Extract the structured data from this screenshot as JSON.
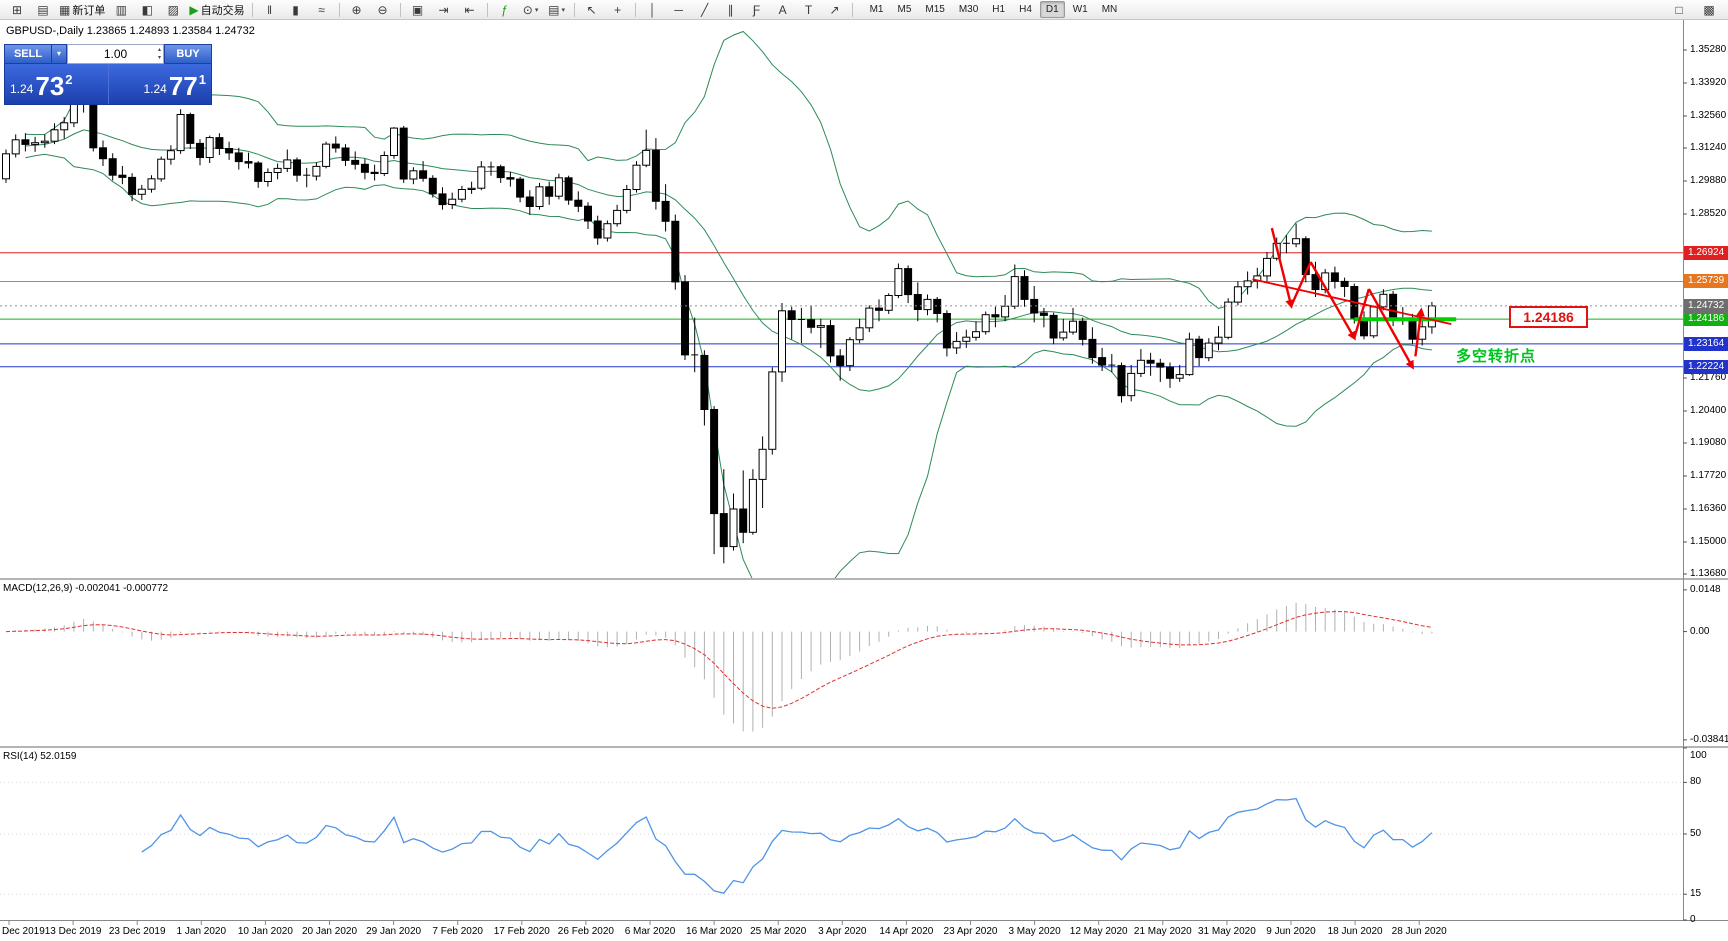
{
  "icons": {
    "caret_down": "▾",
    "spinner_up": "▴",
    "spinner_down": "▾"
  },
  "toolbar": {
    "buttons": [
      {
        "name": "new-chart",
        "glyph": "⊞"
      },
      {
        "name": "chart-profiles",
        "glyph": "▤"
      },
      {
        "name": "new-order",
        "glyph": "▦",
        "label": "新订单"
      },
      {
        "name": "market-watch",
        "glyph": "▥"
      },
      {
        "name": "data-window",
        "glyph": "◧"
      },
      {
        "name": "strategy-tester",
        "glyph": "▨"
      },
      {
        "name": "auto-trading",
        "glyph": "▶",
        "label": "自动交易",
        "glyph_color": "#18a018"
      },
      {
        "sep": true
      },
      {
        "name": "bar-chart-mode",
        "glyph": "‖"
      },
      {
        "name": "candlestick-mode",
        "glyph": "▮"
      },
      {
        "name": "line-chart-mode",
        "glyph": "≈"
      },
      {
        "sep": true
      },
      {
        "name": "zoom-in",
        "glyph": "⊕"
      },
      {
        "name": "zoom-out",
        "glyph": "⊖"
      },
      {
        "sep": true
      },
      {
        "name": "tile-windows",
        "glyph": "▣"
      },
      {
        "name": "auto-scroll",
        "glyph": "⇥"
      },
      {
        "name": "chart-shift",
        "glyph": "⇤"
      },
      {
        "sep": true
      },
      {
        "name": "indicators",
        "glyph": "ƒ",
        "glyph_color": "#18a018"
      },
      {
        "name": "periods",
        "glyph": "⊙",
        "caret": true
      },
      {
        "name": "templates",
        "glyph": "▤",
        "caret": true
      },
      {
        "sep": true
      },
      {
        "name": "cursor",
        "glyph": "↖"
      },
      {
        "name": "crosshair",
        "glyph": "+"
      },
      {
        "sep": true
      },
      {
        "name": "vertical-line",
        "glyph": "│"
      },
      {
        "name": "horizontal-line",
        "glyph": "─"
      },
      {
        "name": "trendline",
        "glyph": "╱"
      },
      {
        "name": "equidistant-channel",
        "glyph": "∥"
      },
      {
        "name": "fibonacci",
        "glyph": "Ƒ"
      },
      {
        "name": "text",
        "glyph": "A"
      },
      {
        "name": "text-label",
        "glyph": "T"
      },
      {
        "name": "arrow-tools",
        "glyph": "↗"
      },
      {
        "sep": true
      }
    ],
    "timeframes": [
      {
        "label": "M1"
      },
      {
        "label": "M5"
      },
      {
        "label": "M15"
      },
      {
        "label": "M30"
      },
      {
        "label": "H1"
      },
      {
        "label": "H4"
      },
      {
        "label": "D1",
        "active": true
      },
      {
        "label": "W1"
      },
      {
        "label": "MN"
      }
    ],
    "right_buttons": [
      {
        "name": "toolbar-right-icon-a",
        "glyph": "□"
      },
      {
        "name": "toolbar-right-icon-b",
        "glyph": "▩"
      }
    ]
  },
  "chart": {
    "info_symbol": "GBPUSD-,Daily",
    "info_ohlc": "1.23865 1.24893 1.23584 1.24732"
  },
  "trade_panel": {
    "sell_label": "SELL",
    "buy_label": "BUY",
    "volume": "1.00",
    "sell_big": "1.24",
    "sell_pips": "73",
    "sell_point": "2",
    "buy_big": "1.24",
    "buy_pips": "77",
    "buy_point": "1"
  },
  "annotations": {
    "price_box_label": "1.24186",
    "turning_point_label": "多空转折点"
  },
  "chart_data": {
    "type": "candlestick",
    "symbol": "GBPUSD-",
    "period": "Daily",
    "price_range": {
      "top": 1.3528,
      "bottom": 1.1368
    },
    "price_ticks": [
      "1.35280",
      "1.33920",
      "1.32560",
      "1.31240",
      "1.29880",
      "1.28520",
      "1.21760",
      "1.20400",
      "1.19080",
      "1.17720",
      "1.16360",
      "1.15000",
      "1.13680"
    ],
    "date_labels": [
      "Dec 2019",
      "13 Dec 2019",
      "23 Dec 2019",
      "1 Jan 2020",
      "10 Jan 2020",
      "20 Jan 2020",
      "29 Jan 2020",
      "7 Feb 2020",
      "17 Feb 2020",
      "26 Feb 2020",
      "6 Mar 2020",
      "16 Mar 2020",
      "25 Mar 2020",
      "3 Apr 2020",
      "14 Apr 2020",
      "23 Apr 2020",
      "3 May 2020",
      "12 May 2020",
      "21 May 2020",
      "31 May 2020",
      "9 Jun 2020",
      "18 Jun 2020",
      "28 Jun 2020"
    ],
    "price_lines": [
      {
        "price": 1.26924,
        "label": "1.26924",
        "color": "#e02020"
      },
      {
        "price": 1.25739,
        "label": "1.25739",
        "color": "#e8761e"
      },
      {
        "price": 1.24186,
        "label": "1.24186",
        "color": "#10b010"
      },
      {
        "price": 1.23164,
        "label": "1.23164",
        "color": "#2233cc"
      },
      {
        "price": 1.22224,
        "label": "1.22224",
        "color": "#2233cc"
      }
    ],
    "current_price": {
      "price": 1.24732,
      "label": "1.24732",
      "color": "#6e6e6e"
    },
    "bollinger": {
      "period": 20,
      "deviation": 2,
      "color": "#2e8b57"
    },
    "support_segment": {
      "from_index": 139,
      "to_index": 149.5,
      "price": 1.2418,
      "color": "#00d000",
      "width": 4
    },
    "red_trendline": {
      "from": [
        128.5,
        1.2583
      ],
      "to": [
        149,
        1.2398
      ],
      "color": "#f00000"
    },
    "red_zigzag": {
      "color": "#f00000",
      "points": [
        [
          130.5,
          1.2794
        ],
        [
          132.5,
          1.2473
        ],
        [
          134.5,
          1.2654
        ],
        [
          139,
          1.2341
        ],
        [
          140.5,
          1.2543
        ],
        [
          145,
          1.2221
        ]
      ],
      "arrow_segments": [
        0,
        2,
        4
      ],
      "final_arrow": {
        "from": [
          145.3,
          1.2265
        ],
        "to": [
          145.9,
          1.2455
        ]
      }
    },
    "macd": {
      "label": "MACD(12,26,9) -0.002041 -0.000772",
      "fast": 12,
      "slow": 26,
      "signal": 9,
      "ticks": [
        {
          "v": 0.0148,
          "label": "0.0148"
        },
        {
          "v": 0,
          "label": "0.00"
        },
        {
          "v": -0.038415,
          "label": "-0.038415"
        }
      ],
      "histogram_color": "#b0b0b0",
      "signal_color": "#e03030"
    },
    "rsi": {
      "label": "RSI(14) 52.0159",
      "period": 14,
      "value": 52.0159,
      "ticks": [
        {
          "v": 100,
          "label": "100"
        },
        {
          "v": 80,
          "label": "80"
        },
        {
          "v": 50,
          "label": "50"
        },
        {
          "v": 15,
          "label": "15"
        },
        {
          "v": 0,
          "label": "0"
        }
      ],
      "color": "#4f94e8"
    },
    "candles": [
      [
        1.2997,
        1.3118,
        1.298,
        1.31
      ],
      [
        1.31,
        1.318,
        1.3085,
        1.3158
      ],
      [
        1.3158,
        1.3185,
        1.311,
        1.3139
      ],
      [
        1.3139,
        1.317,
        1.3108,
        1.3146
      ],
      [
        1.3146,
        1.318,
        1.3125,
        1.3152
      ],
      [
        1.3152,
        1.3226,
        1.314,
        1.3199
      ],
      [
        1.3199,
        1.3252,
        1.3162,
        1.3228
      ],
      [
        1.3228,
        1.3514,
        1.321,
        1.3331
      ],
      [
        1.3331,
        1.3422,
        1.327,
        1.3333
      ],
      [
        1.3333,
        1.334,
        1.311,
        1.3125
      ],
      [
        1.3125,
        1.3155,
        1.305,
        1.308
      ],
      [
        1.308,
        1.3102,
        1.299,
        1.3012
      ],
      [
        1.3012,
        1.305,
        1.2975,
        1.3003
      ],
      [
        1.3003,
        1.302,
        1.2905,
        1.2933
      ],
      [
        1.2933,
        1.2972,
        1.291,
        1.2954
      ],
      [
        1.2954,
        1.3012,
        1.294,
        1.2997
      ],
      [
        1.2997,
        1.3089,
        1.2985,
        1.3078
      ],
      [
        1.3078,
        1.3135,
        1.3055,
        1.3113
      ],
      [
        1.3113,
        1.3284,
        1.31,
        1.3262
      ],
      [
        1.3262,
        1.327,
        1.312,
        1.3143
      ],
      [
        1.3143,
        1.316,
        1.3053,
        1.3085
      ],
      [
        1.3085,
        1.3175,
        1.3062,
        1.3167
      ],
      [
        1.3167,
        1.3185,
        1.3095,
        1.3122
      ],
      [
        1.3122,
        1.315,
        1.3075,
        1.3104
      ],
      [
        1.3104,
        1.3125,
        1.3035,
        1.3068
      ],
      [
        1.3068,
        1.3105,
        1.304,
        1.3062
      ],
      [
        1.3062,
        1.307,
        1.296,
        1.2986
      ],
      [
        1.2986,
        1.304,
        1.2965,
        1.3023
      ],
      [
        1.3023,
        1.306,
        1.2995,
        1.304
      ],
      [
        1.304,
        1.3118,
        1.3025,
        1.3075
      ],
      [
        1.3075,
        1.3085,
        1.2985,
        1.3012
      ],
      [
        1.3012,
        1.3042,
        1.2962,
        1.3008
      ],
      [
        1.3008,
        1.3065,
        1.299,
        1.3048
      ],
      [
        1.3048,
        1.315,
        1.304,
        1.314
      ],
      [
        1.314,
        1.3172,
        1.3105,
        1.3124
      ],
      [
        1.3124,
        1.314,
        1.305,
        1.3073
      ],
      [
        1.3073,
        1.311,
        1.3035,
        1.3057
      ],
      [
        1.3057,
        1.308,
        1.2995,
        1.3024
      ],
      [
        1.3024,
        1.3055,
        1.299,
        1.3019
      ],
      [
        1.3019,
        1.311,
        1.3008,
        1.3093
      ],
      [
        1.3093,
        1.321,
        1.308,
        1.3206
      ],
      [
        1.3206,
        1.3215,
        1.298,
        1.2996
      ],
      [
        1.2996,
        1.3045,
        1.2975,
        1.303
      ],
      [
        1.303,
        1.307,
        1.2985,
        1.2999
      ],
      [
        1.2999,
        1.3012,
        1.292,
        1.2935
      ],
      [
        1.2935,
        1.2962,
        1.287,
        1.2891
      ],
      [
        1.2891,
        1.294,
        1.2872,
        1.2913
      ],
      [
        1.2913,
        1.2968,
        1.29,
        1.2953
      ],
      [
        1.2953,
        1.2985,
        1.2935,
        1.2958
      ],
      [
        1.2958,
        1.307,
        1.295,
        1.3046
      ],
      [
        1.3046,
        1.3068,
        1.301,
        1.3047
      ],
      [
        1.3047,
        1.3055,
        1.298,
        1.3002
      ],
      [
        1.3002,
        1.3025,
        1.2965,
        1.2996
      ],
      [
        1.2996,
        1.3005,
        1.29,
        1.2922
      ],
      [
        1.2922,
        1.295,
        1.2848,
        1.2883
      ],
      [
        1.2883,
        1.298,
        1.287,
        1.2964
      ],
      [
        1.2964,
        1.2985,
        1.289,
        1.2925
      ],
      [
        1.2925,
        1.3018,
        1.2912,
        1.3001
      ],
      [
        1.3001,
        1.301,
        1.289,
        1.2909
      ],
      [
        1.2909,
        1.2945,
        1.286,
        1.2884
      ],
      [
        1.2884,
        1.29,
        1.279,
        1.2823
      ],
      [
        1.2823,
        1.2845,
        1.2725,
        1.2753
      ],
      [
        1.2753,
        1.2825,
        1.2738,
        1.2812
      ],
      [
        1.2812,
        1.289,
        1.28,
        1.2867
      ],
      [
        1.2867,
        1.2972,
        1.2855,
        1.2953
      ],
      [
        1.2953,
        1.307,
        1.294,
        1.3053
      ],
      [
        1.3053,
        1.32,
        1.3045,
        1.3114
      ],
      [
        1.3114,
        1.3165,
        1.287,
        1.2904
      ],
      [
        1.2904,
        1.2975,
        1.278,
        1.2822
      ],
      [
        1.2822,
        1.285,
        1.254,
        1.2572
      ],
      [
        1.2572,
        1.26,
        1.225,
        1.2271
      ],
      [
        1.2271,
        1.2425,
        1.22,
        1.2269
      ],
      [
        1.2269,
        1.229,
        1.198,
        1.2046
      ],
      [
        1.2046,
        1.206,
        1.145,
        1.1617
      ],
      [
        1.1617,
        1.18,
        1.1412,
        1.1481
      ],
      [
        1.1481,
        1.17,
        1.1465,
        1.1636
      ],
      [
        1.1636,
        1.1795,
        1.1495,
        1.154
      ],
      [
        1.154,
        1.18,
        1.153,
        1.1758
      ],
      [
        1.1758,
        1.1935,
        1.164,
        1.1882
      ],
      [
        1.1882,
        1.222,
        1.186,
        1.2201
      ],
      [
        1.2201,
        1.2485,
        1.216,
        1.2453
      ],
      [
        1.2453,
        1.247,
        1.2335,
        1.2417
      ],
      [
        1.2417,
        1.2465,
        1.232,
        1.2416
      ],
      [
        1.2416,
        1.2475,
        1.236,
        1.2385
      ],
      [
        1.2385,
        1.242,
        1.23,
        1.2392
      ],
      [
        1.2392,
        1.2415,
        1.224,
        1.2267
      ],
      [
        1.2267,
        1.2295,
        1.2165,
        1.2227
      ],
      [
        1.2227,
        1.2345,
        1.2205,
        1.2334
      ],
      [
        1.2334,
        1.242,
        1.232,
        1.2383
      ],
      [
        1.2383,
        1.2475,
        1.2365,
        1.2464
      ],
      [
        1.2464,
        1.25,
        1.241,
        1.2455
      ],
      [
        1.2455,
        1.2525,
        1.244,
        1.2516
      ],
      [
        1.2516,
        1.2648,
        1.2505,
        1.2627
      ],
      [
        1.2627,
        1.264,
        1.2485,
        1.252
      ],
      [
        1.252,
        1.257,
        1.241,
        1.2458
      ],
      [
        1.2458,
        1.252,
        1.2435,
        1.25
      ],
      [
        1.25,
        1.251,
        1.2405,
        1.2442
      ],
      [
        1.2442,
        1.2455,
        1.2265,
        1.23
      ],
      [
        1.23,
        1.2365,
        1.2275,
        1.2327
      ],
      [
        1.2327,
        1.2375,
        1.23,
        1.2344
      ],
      [
        1.2344,
        1.241,
        1.233,
        1.2367
      ],
      [
        1.2367,
        1.245,
        1.2355,
        1.2437
      ],
      [
        1.2437,
        1.247,
        1.2385,
        1.2428
      ],
      [
        1.2428,
        1.2518,
        1.241,
        1.2472
      ],
      [
        1.2472,
        1.2644,
        1.246,
        1.2594
      ],
      [
        1.2594,
        1.262,
        1.247,
        1.25
      ],
      [
        1.25,
        1.2555,
        1.2405,
        1.2444
      ],
      [
        1.2444,
        1.2465,
        1.2385,
        1.2434
      ],
      [
        1.2434,
        1.2445,
        1.2315,
        1.2341
      ],
      [
        1.2341,
        1.242,
        1.233,
        1.2365
      ],
      [
        1.2365,
        1.2465,
        1.2355,
        1.241
      ],
      [
        1.241,
        1.2425,
        1.231,
        1.2335
      ],
      [
        1.2335,
        1.2385,
        1.2235,
        1.226
      ],
      [
        1.226,
        1.23,
        1.2205,
        1.2229
      ],
      [
        1.2229,
        1.2275,
        1.22,
        1.2227
      ],
      [
        1.2227,
        1.224,
        1.2075,
        1.2103
      ],
      [
        1.2103,
        1.223,
        1.208,
        1.2195
      ],
      [
        1.2195,
        1.2295,
        1.218,
        1.2249
      ],
      [
        1.2249,
        1.228,
        1.2185,
        1.2237
      ],
      [
        1.2237,
        1.2255,
        1.216,
        1.2221
      ],
      [
        1.2221,
        1.224,
        1.2135,
        1.2175
      ],
      [
        1.2175,
        1.223,
        1.216,
        1.219
      ],
      [
        1.219,
        1.2363,
        1.2185,
        1.2336
      ],
      [
        1.2336,
        1.235,
        1.2225,
        1.226
      ],
      [
        1.226,
        1.234,
        1.2245,
        1.232
      ],
      [
        1.232,
        1.239,
        1.229,
        1.2344
      ],
      [
        1.2344,
        1.2505,
        1.2335,
        1.2489
      ],
      [
        1.2489,
        1.2575,
        1.2475,
        1.2552
      ],
      [
        1.2552,
        1.2615,
        1.252,
        1.2576
      ],
      [
        1.2576,
        1.263,
        1.2545,
        1.2597
      ],
      [
        1.2597,
        1.2695,
        1.2575,
        1.2669
      ],
      [
        1.2669,
        1.2755,
        1.266,
        1.2731
      ],
      [
        1.2731,
        1.2765,
        1.269,
        1.2729
      ],
      [
        1.2729,
        1.2813,
        1.2715,
        1.275
      ],
      [
        1.275,
        1.276,
        1.257,
        1.2602
      ],
      [
        1.2602,
        1.2655,
        1.251,
        1.254
      ],
      [
        1.254,
        1.2625,
        1.2525,
        1.2609
      ],
      [
        1.2609,
        1.2635,
        1.2545,
        1.2574
      ],
      [
        1.2574,
        1.259,
        1.251,
        1.2553
      ],
      [
        1.2553,
        1.2565,
        1.24,
        1.2423
      ],
      [
        1.2423,
        1.245,
        1.2335,
        1.235
      ],
      [
        1.235,
        1.2475,
        1.234,
        1.2469
      ],
      [
        1.2469,
        1.2542,
        1.2455,
        1.2521
      ],
      [
        1.2521,
        1.2535,
        1.239,
        1.242
      ],
      [
        1.242,
        1.2468,
        1.2395,
        1.2421
      ],
      [
        1.2421,
        1.244,
        1.2315,
        1.2336
      ],
      [
        1.2336,
        1.2412,
        1.231,
        1.2387
      ],
      [
        1.23865,
        1.24893,
        1.23584,
        1.24732
      ]
    ]
  }
}
